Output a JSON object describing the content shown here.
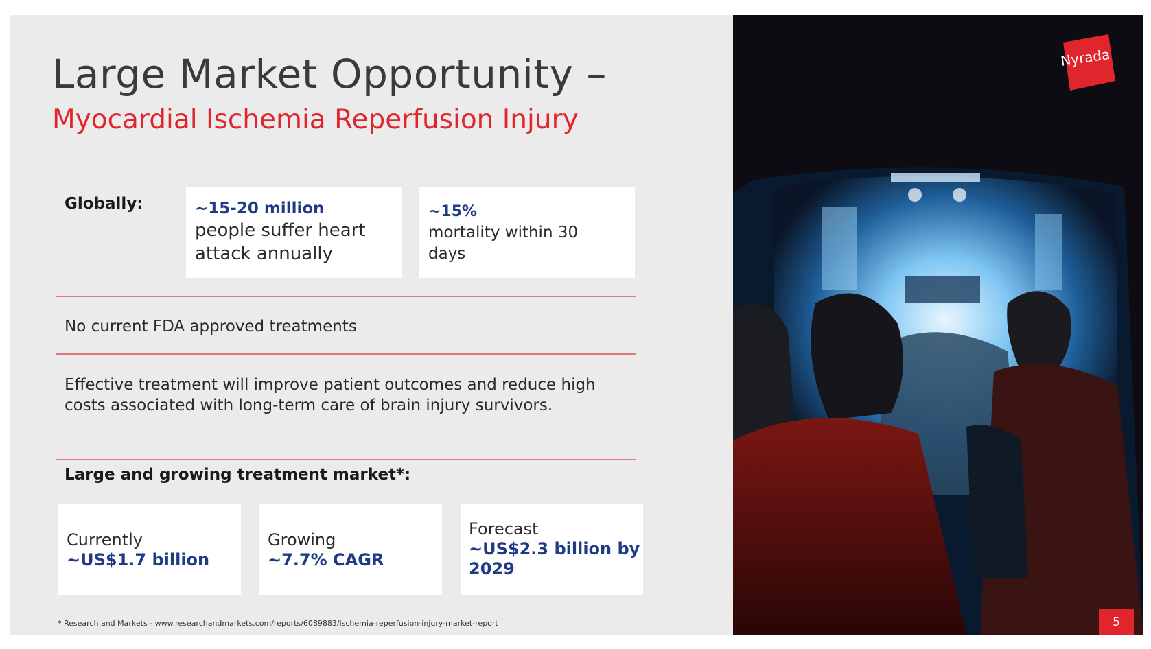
{
  "title": "Large Market Opportunity –",
  "subtitle": "Myocardial Ischemia Reperfusion Injury",
  "globally": {
    "label": "Globally:",
    "cards": [
      {
        "highlight": "~15-20 million",
        "text_lines": [
          "people suffer heart",
          "attack annually"
        ]
      },
      {
        "highlight": "~15%",
        "text_lines": [
          "mortality within 30",
          "days"
        ]
      }
    ]
  },
  "no_fda": "No current FDA approved treatments",
  "effective": "Effective treatment will improve patient outcomes and reduce high costs associated with long-term care of brain injury survivors.",
  "market": {
    "label": "Large and growing treatment market*:",
    "cards": [
      {
        "label": "Currently",
        "value": "~US$1.7 billion"
      },
      {
        "label": "Growing",
        "value": "~7.7% CAGR"
      },
      {
        "label": "Forecast",
        "value_lines": [
          "~US$2.3 billion by",
          "2029"
        ]
      }
    ]
  },
  "footnote": "* Research and Markets - www.researchandmarkets.com/reports/6089883/ischemia-reperfusion-injury-market-report",
  "logo_text": "Nyrada",
  "page_number": "5",
  "colors": {
    "accent_red": "#e0262c",
    "highlight_blue": "#1f3b86",
    "background": "#ebebec"
  }
}
